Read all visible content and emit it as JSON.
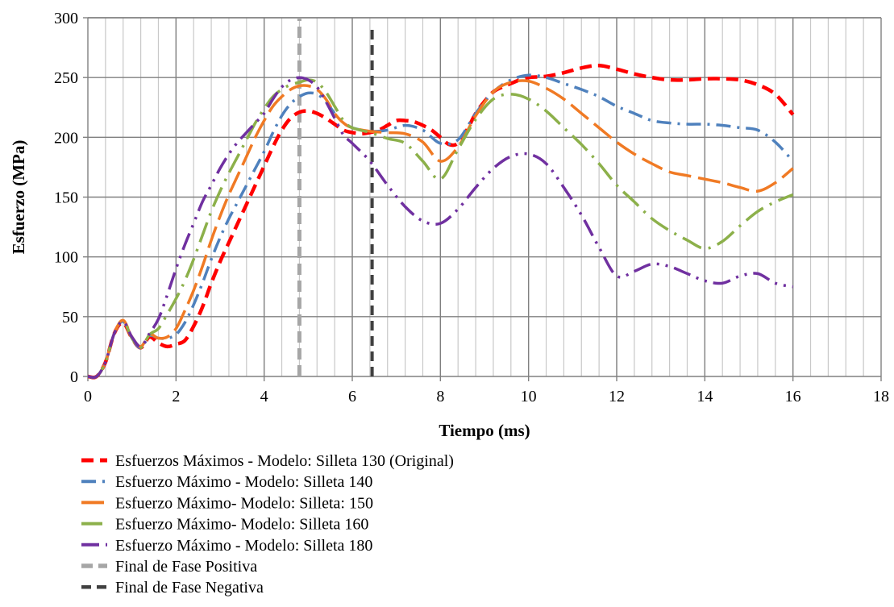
{
  "chart_data": {
    "type": "line",
    "title": "",
    "xlabel": "Tiempo (ms)",
    "ylabel": "Esfuerzo (MPa)",
    "xlim": [
      0,
      18
    ],
    "ylim": [
      0,
      300
    ],
    "x_ticks": [
      0,
      2,
      4,
      6,
      8,
      10,
      12,
      14,
      16,
      18
    ],
    "y_ticks": [
      0,
      50,
      100,
      150,
      200,
      250,
      300
    ],
    "minor_x_step": 0.4,
    "grid": true,
    "legend_position": "bottom",
    "series": [
      {
        "name": "Esfuerzos Máximos - Modelo: Silleta 130 (Original)",
        "color": "#ff0000",
        "dash": "dash",
        "x": [
          0,
          0.2,
          0.4,
          0.6,
          0.8,
          1.0,
          1.2,
          1.4,
          1.6,
          1.8,
          2.0,
          2.2,
          2.4,
          2.6,
          2.8,
          3.0,
          3.2,
          3.4,
          3.6,
          3.8,
          4.0,
          4.2,
          4.4,
          4.6,
          4.8,
          5.0,
          5.2,
          5.4,
          5.6,
          5.8,
          6.0,
          6.2,
          6.4,
          6.6,
          6.8,
          7.0,
          7.2,
          7.4,
          7.6,
          7.8,
          8.0,
          8.2,
          8.4,
          8.6,
          8.8,
          9.0,
          9.2,
          9.4,
          9.6,
          9.8,
          10.0,
          10.4,
          10.8,
          11.2,
          11.6,
          12.0,
          12.4,
          12.8,
          13.2,
          13.6,
          14.0,
          14.4,
          14.8,
          15.2,
          15.6,
          16.0
        ],
        "y": [
          0,
          0,
          12,
          36,
          45,
          32,
          24,
          33,
          28,
          25,
          27,
          30,
          42,
          58,
          78,
          96,
          112,
          128,
          144,
          160,
          176,
          192,
          206,
          216,
          221,
          222,
          220,
          216,
          211,
          206,
          204,
          203,
          204,
          206,
          210,
          214,
          214,
          213,
          210,
          206,
          200,
          194,
          195,
          206,
          220,
          230,
          238,
          242,
          245,
          248,
          250,
          251,
          254,
          258,
          260,
          257,
          253,
          250,
          248,
          248,
          249,
          249,
          248,
          244,
          236,
          219
        ]
      },
      {
        "name": "Esfuerzo Máximo - Modelo: Silleta 140",
        "color": "#4f81bd",
        "dash": "dashdot",
        "x": [
          0,
          0.2,
          0.4,
          0.6,
          0.8,
          1.0,
          1.2,
          1.4,
          1.6,
          1.8,
          2.0,
          2.2,
          2.4,
          2.6,
          2.8,
          3.0,
          3.2,
          3.4,
          3.6,
          3.8,
          4.0,
          4.2,
          4.4,
          4.6,
          4.8,
          5.0,
          5.2,
          5.4,
          5.6,
          5.8,
          6.0,
          6.4,
          6.8,
          7.2,
          7.6,
          8.0,
          8.4,
          8.8,
          9.2,
          9.6,
          10.0,
          10.4,
          10.8,
          11.2,
          11.6,
          12.0,
          12.4,
          12.8,
          13.2,
          13.6,
          14.0,
          14.4,
          14.8,
          15.2,
          15.6,
          16.0
        ],
        "y": [
          0,
          0,
          12,
          36,
          46,
          32,
          24,
          34,
          32,
          32,
          35,
          45,
          60,
          78,
          98,
          116,
          132,
          146,
          160,
          174,
          188,
          204,
          218,
          228,
          234,
          237,
          236,
          230,
          220,
          212,
          208,
          205,
          206,
          210,
          206,
          195,
          198,
          220,
          238,
          248,
          252,
          250,
          245,
          240,
          234,
          226,
          220,
          214,
          212,
          211,
          211,
          210,
          208,
          206,
          196,
          180
        ]
      },
      {
        "name": "Esfuerzo Máximo- Modelo: Silleta: 150",
        "color": "#f07a24",
        "dash": "longdash",
        "x": [
          0,
          0.2,
          0.4,
          0.6,
          0.8,
          1.0,
          1.2,
          1.4,
          1.6,
          1.8,
          2.0,
          2.2,
          2.4,
          2.6,
          2.8,
          3.0,
          3.2,
          3.4,
          3.6,
          3.8,
          4.0,
          4.2,
          4.4,
          4.6,
          4.8,
          5.0,
          5.2,
          5.4,
          5.6,
          5.8,
          6.0,
          6.4,
          6.8,
          7.2,
          7.6,
          8.0,
          8.4,
          8.8,
          9.2,
          9.6,
          10.0,
          10.4,
          10.8,
          11.2,
          11.6,
          12.0,
          12.4,
          12.8,
          13.2,
          13.6,
          14.0,
          14.4,
          14.8,
          15.2,
          15.6,
          16.0
        ],
        "y": [
          0,
          0,
          12,
          36,
          47,
          33,
          25,
          35,
          32,
          33,
          40,
          55,
          72,
          92,
          114,
          134,
          152,
          168,
          184,
          200,
          214,
          226,
          234,
          240,
          243,
          243,
          240,
          232,
          220,
          212,
          208,
          205,
          204,
          203,
          196,
          180,
          192,
          218,
          238,
          246,
          247,
          241,
          232,
          220,
          208,
          196,
          186,
          178,
          171,
          168,
          165,
          162,
          158,
          155,
          162,
          174
        ]
      },
      {
        "name": "Esfuerzo Máximo- Modelo: Silleta 160",
        "color": "#8cb04a",
        "dash": "longdashdot",
        "x": [
          0,
          0.2,
          0.4,
          0.6,
          0.8,
          1.0,
          1.2,
          1.4,
          1.6,
          1.8,
          2.0,
          2.2,
          2.4,
          2.6,
          2.8,
          3.0,
          3.2,
          3.4,
          3.6,
          3.8,
          4.0,
          4.2,
          4.4,
          4.6,
          4.8,
          5.0,
          5.2,
          5.4,
          5.6,
          5.8,
          6.0,
          6.4,
          6.8,
          7.2,
          7.6,
          8.0,
          8.4,
          8.8,
          9.2,
          9.6,
          10.0,
          10.4,
          10.8,
          11.2,
          11.6,
          12.0,
          12.4,
          12.8,
          13.2,
          13.6,
          14.0,
          14.4,
          14.8,
          15.2,
          15.6,
          16.0
        ],
        "y": [
          0,
          0,
          12,
          36,
          46,
          32,
          24,
          35,
          40,
          52,
          65,
          80,
          98,
          118,
          138,
          155,
          170,
          184,
          198,
          212,
          224,
          234,
          240,
          244,
          246,
          248,
          246,
          238,
          226,
          214,
          208,
          204,
          199,
          195,
          180,
          165,
          190,
          215,
          232,
          236,
          232,
          222,
          208,
          194,
          178,
          160,
          146,
          132,
          122,
          114,
          107,
          113,
          126,
          138,
          146,
          152
        ]
      },
      {
        "name": "Esfuerzo Máximo - Modelo: Silleta 180",
        "color": "#7030a0",
        "dash": "dashdotdot",
        "x": [
          0,
          0.2,
          0.4,
          0.6,
          0.8,
          1.0,
          1.2,
          1.4,
          1.6,
          1.8,
          2.0,
          2.2,
          2.4,
          2.6,
          2.8,
          3.0,
          3.2,
          3.4,
          3.6,
          3.8,
          4.0,
          4.2,
          4.4,
          4.6,
          4.8,
          5.0,
          5.2,
          5.4,
          5.6,
          5.8,
          6.0,
          6.4,
          6.8,
          7.2,
          7.6,
          8.0,
          8.4,
          8.8,
          9.2,
          9.6,
          10.0,
          10.4,
          10.8,
          11.2,
          11.6,
          12.0,
          12.4,
          12.8,
          13.2,
          13.6,
          14.0,
          14.4,
          14.8,
          15.2,
          15.6,
          16.0
        ],
        "y": [
          0,
          0,
          12,
          36,
          46,
          33,
          25,
          36,
          48,
          68,
          90,
          110,
          128,
          146,
          160,
          174,
          186,
          196,
          204,
          212,
          220,
          232,
          242,
          248,
          250,
          248,
          242,
          230,
          216,
          202,
          195,
          180,
          160,
          142,
          130,
          128,
          140,
          158,
          174,
          184,
          186,
          178,
          158,
          135,
          108,
          84,
          88,
          94,
          92,
          86,
          80,
          78,
          84,
          86,
          78,
          75
        ]
      },
      {
        "name": "Final de Fase Positiva",
        "color": "#a6a6a6",
        "dash": "wide",
        "vertical": true,
        "x": [
          4.8,
          4.8
        ],
        "y": [
          0,
          300
        ]
      },
      {
        "name": "Final de Fase Negativa",
        "color": "#404040",
        "dash": "medium",
        "vertical": true,
        "x": [
          6.45,
          6.45
        ],
        "y": [
          0,
          290
        ]
      }
    ]
  }
}
